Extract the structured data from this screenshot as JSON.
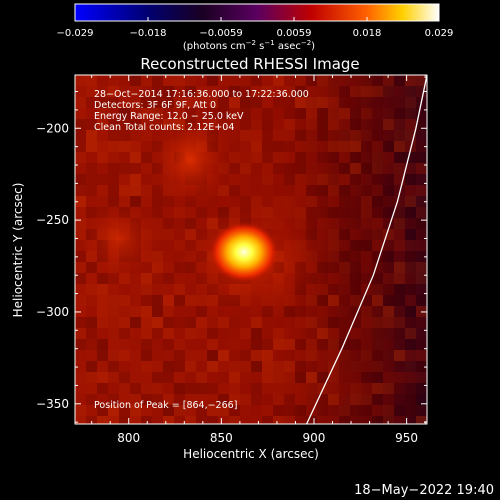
{
  "colorbar": {
    "ticks": [
      "−0.029",
      "−0.018",
      "−0.0059",
      "0.0059",
      "0.018",
      "0.029"
    ],
    "unit_main": "(photons cm",
    "unit_exp1": "−2",
    "unit_mid": " s",
    "unit_exp2": "−1",
    "unit_end": " asec",
    "unit_exp3": "−2",
    "unit_close": ")"
  },
  "annotations": {
    "time": "28−Oct−2014 17:16:36.000 to 17:22:36.000",
    "detectors": "Detectors: 3F 6F 9F, Att 0",
    "energy": "Energy Range: 12.0 − 25.0 keV",
    "clean": "Clean     Total counts: 2.12E+04",
    "peak": "Position of Peak = [864,−266]"
  },
  "footer": {
    "timestamp": "18−May−2022 19:40"
  },
  "chart_data": {
    "type": "heatmap",
    "title": "Reconstructed RHESSI Image",
    "xlabel": "Heliocentric X (arcsec)",
    "ylabel": "Heliocentric Y (arcsec)",
    "xlim": [
      771,
      961
    ],
    "ylim": [
      -361,
      -171
    ],
    "x_ticks": [
      "800",
      "850",
      "900",
      "950"
    ],
    "x_tick_values": [
      800,
      850,
      900,
      950
    ],
    "y_ticks": [
      "−200",
      "−250",
      "−300",
      "−350"
    ],
    "y_tick_values": [
      -200,
      -250,
      -300,
      -350
    ],
    "peak": {
      "x": 864,
      "y": -266
    },
    "colorbar_range": [
      -0.029,
      0.029
    ],
    "colormap": "black-purple-red-yellow-white",
    "limb_curve": {
      "x": [
        896,
        915,
        932,
        945,
        955,
        961
      ],
      "y": [
        -361,
        -320,
        -280,
        -240,
        -200,
        -171
      ]
    },
    "colors": {
      "limb": "#ffffff",
      "background": "#000000"
    }
  }
}
